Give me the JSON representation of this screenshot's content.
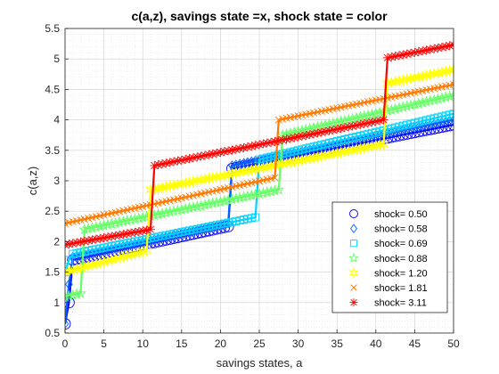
{
  "chart_data": {
    "type": "line",
    "title": "c(a,z), savings state =x, shock state = color",
    "xlabel": "savings states, a",
    "ylabel": "c(a,z)",
    "xlim": [
      0,
      50
    ],
    "ylim": [
      0.5,
      5.5
    ],
    "xticks": [
      "0",
      "5",
      "10",
      "15",
      "20",
      "25",
      "30",
      "35",
      "40",
      "45",
      "50"
    ],
    "yticks": [
      "0.5",
      "1",
      "1.5",
      "2",
      "2.5",
      "3",
      "3.5",
      "4",
      "4.5",
      "5",
      "5.5"
    ],
    "grid": "on (major and minor)",
    "legend_position": "lower-right",
    "series": [
      {
        "name": "shock=  0.50",
        "color": "#0000ff",
        "marker": "circle",
        "x": [
          0,
          0.5,
          1,
          21,
          21.5,
          50
        ],
        "y": [
          0.65,
          1.0,
          1.7,
          2.25,
          3.2,
          3.92
        ]
      },
      {
        "name": "shock=  0.58",
        "color": "#0061ff",
        "marker": "diamond",
        "x": [
          0,
          0.5,
          1,
          21,
          21.5,
          50
        ],
        "y": [
          0.65,
          1.3,
          1.75,
          2.3,
          3.25,
          4.0
        ]
      },
      {
        "name": "shock=  0.69",
        "color": "#00d3ff",
        "marker": "square",
        "x": [
          0,
          0.5,
          1,
          24.5,
          25,
          50
        ],
        "y": [
          1.5,
          1.7,
          1.8,
          2.4,
          3.35,
          4.1
        ]
      },
      {
        "name": "shock=  0.88",
        "color": "#64ff64",
        "marker": "pentagram",
        "x": [
          0,
          2,
          2.5,
          27.5,
          28,
          50
        ],
        "y": [
          1.1,
          1.15,
          2.2,
          2.85,
          3.75,
          4.4
        ]
      },
      {
        "name": "shock=  1.20",
        "color": "#ffff00",
        "marker": "hexagram",
        "x": [
          0,
          10.5,
          11,
          41,
          41.5,
          50
        ],
        "y": [
          1.5,
          1.85,
          2.85,
          3.6,
          4.6,
          4.82
        ]
      },
      {
        "name": "shock=  1.81",
        "color": "#ff7a00",
        "marker": "x",
        "x": [
          0,
          27,
          27.5,
          50
        ],
        "y": [
          2.3,
          3.05,
          4.0,
          4.58
        ]
      },
      {
        "name": "shock=  3.11",
        "color": "#ff0000",
        "marker": "asterisk",
        "x": [
          0,
          11,
          11.5,
          41,
          41.5,
          50
        ],
        "y": [
          1.95,
          2.2,
          3.25,
          4.0,
          5.02,
          5.23
        ]
      }
    ]
  }
}
